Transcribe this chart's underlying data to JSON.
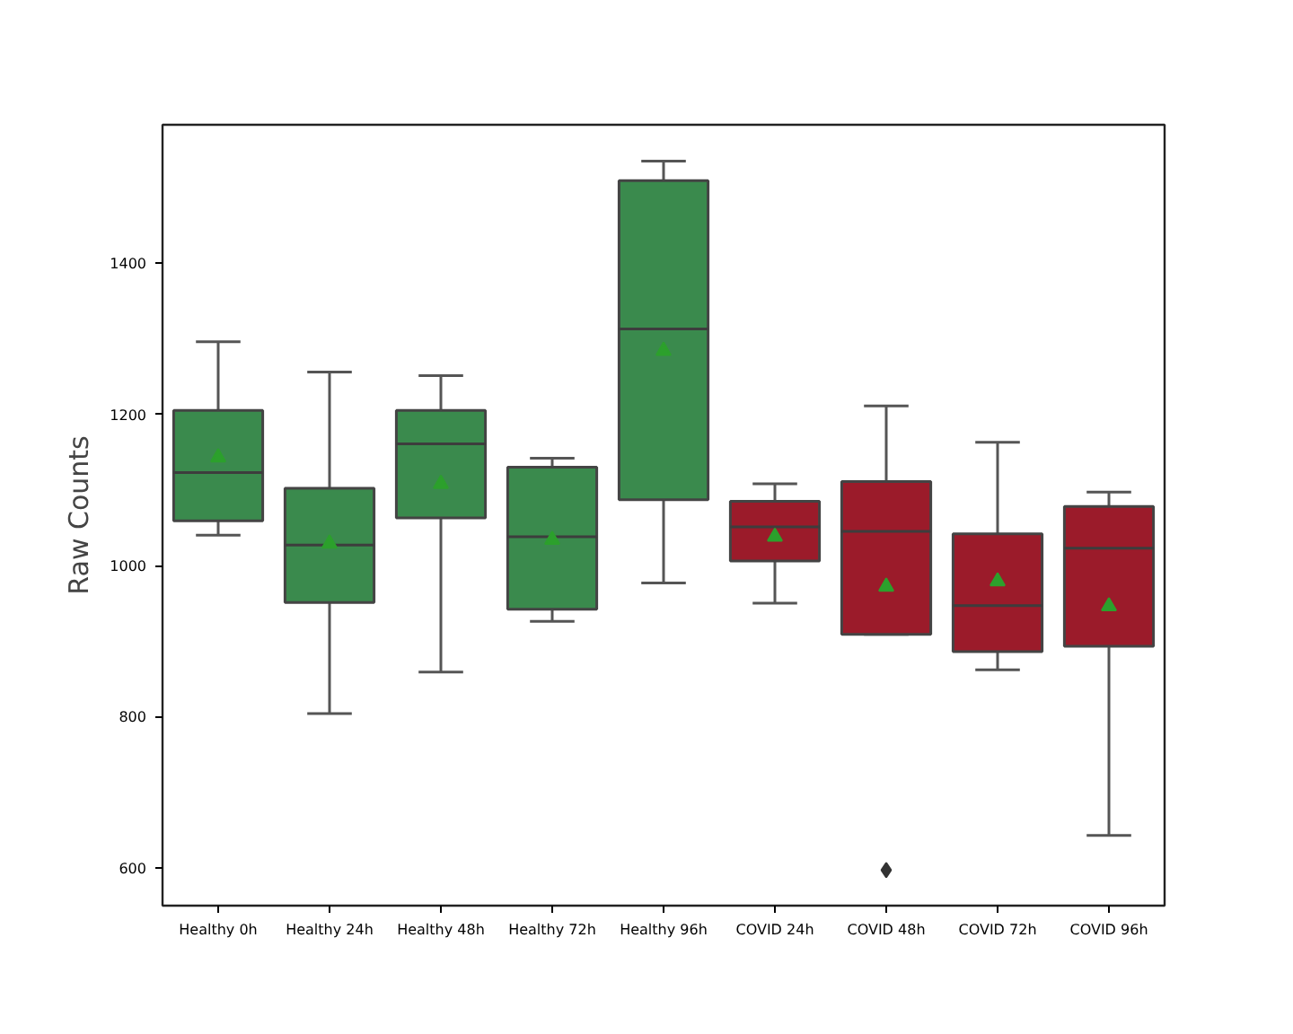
{
  "chart_data": {
    "type": "box",
    "ylabel": "Raw Counts",
    "categories": [
      "Healthy 0h",
      "Healthy 24h",
      "Healthy 48h",
      "Healthy 72h",
      "Healthy 96h",
      "COVID 24h",
      "COVID 48h",
      "COVID 72h",
      "COVID 96h"
    ],
    "colors": [
      "#3a8a4d",
      "#3a8a4d",
      "#3a8a4d",
      "#3a8a4d",
      "#3a8a4d",
      "#9b1b2a",
      "#9b1b2a",
      "#9b1b2a",
      "#9b1b2a"
    ],
    "boxes": [
      {
        "low": 1040,
        "q1": 1059,
        "median": 1123,
        "q3": 1205,
        "high": 1296,
        "mean": 1143
      },
      {
        "low": 804,
        "q1": 951,
        "median": 1027,
        "q3": 1102,
        "high": 1256,
        "mean": 1029
      },
      {
        "low": 859,
        "q1": 1063,
        "median": 1161,
        "q3": 1205,
        "high": 1251,
        "mean": 1108
      },
      {
        "low": 926,
        "q1": 942,
        "median": 1038,
        "q3": 1130,
        "high": 1142,
        "mean": 1034
      },
      {
        "low": 977,
        "q1": 1087,
        "median": 1313,
        "q3": 1509,
        "high": 1535,
        "mean": 1284
      },
      {
        "low": 950,
        "q1": 1006,
        "median": 1051,
        "q3": 1085,
        "high": 1108,
        "mean": 1038
      },
      {
        "low": 909,
        "q1": 909,
        "median": 1045,
        "q3": 1111,
        "high": 1211,
        "mean": 972,
        "outliers": [
          597
        ]
      },
      {
        "low": 862,
        "q1": 886,
        "median": 947,
        "q3": 1042,
        "high": 1163,
        "mean": 979
      },
      {
        "low": 643,
        "q1": 893,
        "median": 1023,
        "q3": 1078,
        "high": 1097,
        "mean": 946
      }
    ],
    "ylim": [
      550,
      1583
    ],
    "yticks": [
      600,
      800,
      1000,
      1200,
      1400
    ],
    "grid": false
  }
}
